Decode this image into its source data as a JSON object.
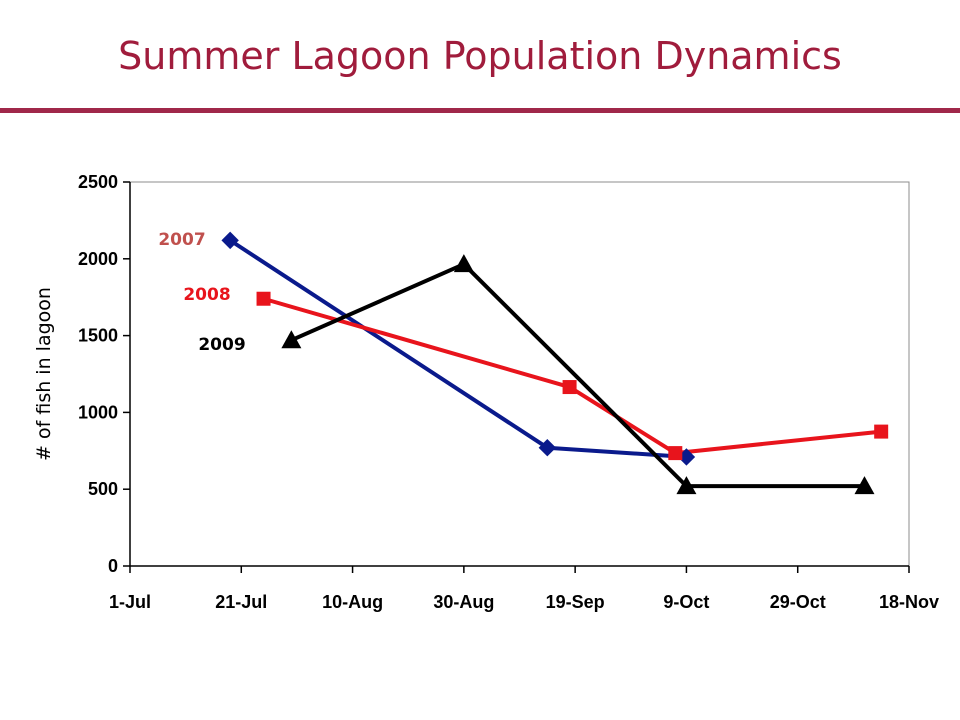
{
  "slide": {
    "title": "Summer Lagoon Population Dynamics",
    "accent_color": "#a01c3c",
    "rule_color": "#a0284a"
  },
  "chart_data": {
    "type": "line",
    "title": "",
    "xlabel": "",
    "ylabel": "# of fish in lagoon",
    "x_ticks": [
      "1-Jul",
      "21-Jul",
      "10-Aug",
      "30-Aug",
      "19-Sep",
      "9-Oct",
      "29-Oct",
      "18-Nov"
    ],
    "x_range": [
      "2009-07-01",
      "2009-11-18"
    ],
    "ylim": [
      0,
      2500
    ],
    "y_ticks": [
      0,
      500,
      1000,
      1500,
      2000,
      2500
    ],
    "grid": false,
    "series": [
      {
        "name": "2007",
        "color": "#0a1a8c",
        "label_color": "#c0504d",
        "marker": "diamond",
        "points": [
          {
            "x": "2009-07-19",
            "y": 2120
          },
          {
            "x": "2009-09-14",
            "y": 770
          },
          {
            "x": "2009-10-09",
            "y": 710
          }
        ]
      },
      {
        "name": "2008",
        "color": "#e8141c",
        "label_color": "#e8141c",
        "marker": "square",
        "points": [
          {
            "x": "2009-07-25",
            "y": 1740
          },
          {
            "x": "2009-09-18",
            "y": 1165
          },
          {
            "x": "2009-10-07",
            "y": 735
          },
          {
            "x": "2009-11-13",
            "y": 875
          }
        ]
      },
      {
        "name": "2009",
        "color": "#000000",
        "label_color": "#000000",
        "marker": "triangle",
        "points": [
          {
            "x": "2009-07-30",
            "y": 1470
          },
          {
            "x": "2009-08-30",
            "y": 1965
          },
          {
            "x": "2009-10-09",
            "y": 520
          },
          {
            "x": "2009-11-10",
            "y": 520
          }
        ]
      }
    ]
  }
}
